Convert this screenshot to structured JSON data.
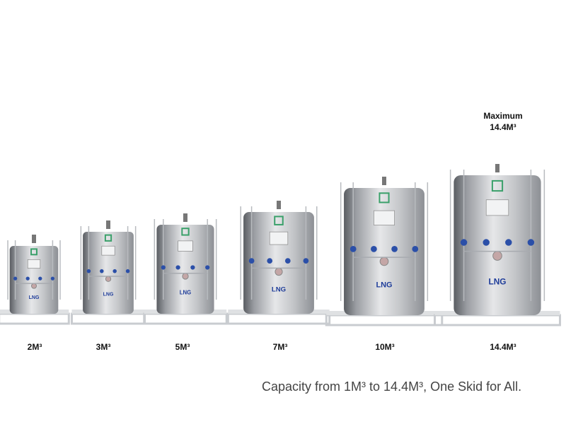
{
  "headline": {
    "line1": "Maximum",
    "line2": "14.4M³"
  },
  "tank_label": "LNG",
  "tanks": [
    {
      "capacity": "2M³"
    },
    {
      "capacity": "3M³"
    },
    {
      "capacity": "5M³"
    },
    {
      "capacity": "7M³"
    },
    {
      "capacity": "10M³"
    },
    {
      "capacity": "14.4M³"
    }
  ],
  "tagline": "Capacity from 1M³ to 14.4M³, One Skid for All.",
  "colors": {
    "logo": "#3aa06a",
    "valve": "#2b4fa8",
    "lng_text": "#1f3d9a",
    "skid": "#c9ccd0"
  }
}
